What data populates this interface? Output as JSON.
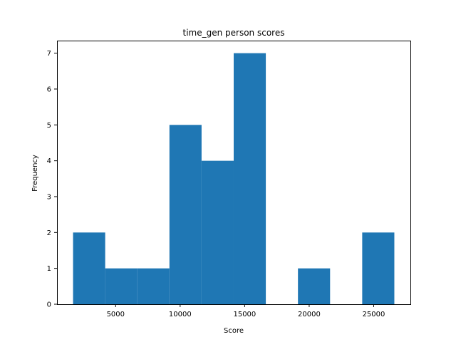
{
  "chart_data": {
    "type": "bar",
    "title": "time_gen person scores",
    "xlabel": "Score",
    "ylabel": "Frequency",
    "bins": [
      {
        "x0": 1700,
        "x1": 4190,
        "count": 2
      },
      {
        "x0": 4190,
        "x1": 6680,
        "count": 1
      },
      {
        "x0": 6680,
        "x1": 9170,
        "count": 1
      },
      {
        "x0": 9170,
        "x1": 11660,
        "count": 5
      },
      {
        "x0": 11660,
        "x1": 14150,
        "count": 4
      },
      {
        "x0": 14150,
        "x1": 16640,
        "count": 7
      },
      {
        "x0": 16640,
        "x1": 19130,
        "count": 0
      },
      {
        "x0": 19130,
        "x1": 21620,
        "count": 1
      },
      {
        "x0": 21620,
        "x1": 24110,
        "count": 0
      },
      {
        "x0": 24110,
        "x1": 26600,
        "count": 2
      }
    ],
    "xlim": [
      456,
      27845
    ],
    "ylim": [
      0,
      7.35
    ],
    "xticks": [
      5000,
      10000,
      15000,
      20000,
      25000
    ],
    "xtick_labels": [
      "5000",
      "10000",
      "15000",
      "20000",
      "25000"
    ],
    "yticks": [
      0,
      1,
      2,
      3,
      4,
      5,
      6,
      7
    ],
    "ytick_labels": [
      "0",
      "1",
      "2",
      "3",
      "4",
      "5",
      "6",
      "7"
    ],
    "bar_color": "#1f77b4",
    "grid": false,
    "legend": "none"
  }
}
